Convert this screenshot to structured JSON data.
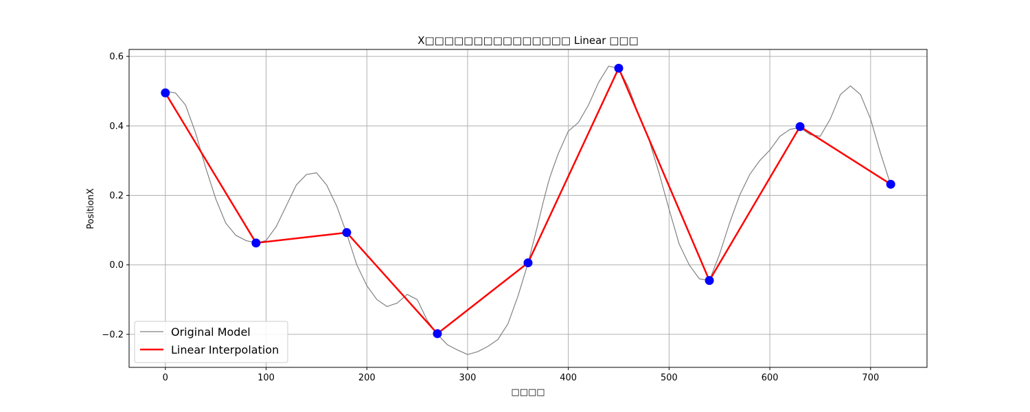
{
  "chart_data": {
    "type": "line",
    "title": "X□□□□□□□□□□□□□□□ Linear □□□",
    "xlabel": "□□□□",
    "ylabel": "PositionX",
    "xlim": [
      -36,
      756
    ],
    "ylim": [
      -0.295,
      0.62
    ],
    "xticks": [
      0,
      100,
      200,
      300,
      400,
      500,
      600,
      700
    ],
    "xtick_labels": [
      "0",
      "100",
      "200",
      "300",
      "400",
      "500",
      "600",
      "700"
    ],
    "yticks": [
      -0.2,
      0.0,
      0.2,
      0.4,
      0.6
    ],
    "ytick_labels": [
      "−0.2",
      "0.0",
      "0.2",
      "0.4",
      "0.6"
    ],
    "grid": true,
    "legend_position": "lower-left",
    "colors": {
      "original": "#808080",
      "interp": "#ff0000",
      "markers": "#0000ff",
      "grid": "#b0b0b0"
    },
    "series": [
      {
        "name": "Original Model",
        "x": [
          0,
          10,
          20,
          30,
          40,
          50,
          60,
          70,
          80,
          90,
          100,
          110,
          120,
          130,
          140,
          150,
          160,
          170,
          180,
          190,
          200,
          210,
          220,
          230,
          240,
          250,
          260,
          270,
          280,
          290,
          300,
          310,
          320,
          330,
          340,
          350,
          360,
          370,
          375,
          380,
          382,
          385,
          390,
          400,
          410,
          420,
          430,
          440,
          450,
          460,
          470,
          480,
          490,
          500,
          510,
          520,
          530,
          540,
          550,
          560,
          570,
          580,
          590,
          600,
          610,
          620,
          630,
          640,
          650,
          660,
          670,
          680,
          690,
          700,
          710,
          720
        ],
        "y": [
          0.5,
          0.495,
          0.46,
          0.38,
          0.28,
          0.19,
          0.12,
          0.085,
          0.07,
          0.063,
          0.07,
          0.11,
          0.17,
          0.23,
          0.26,
          0.265,
          0.23,
          0.17,
          0.09,
          0.0,
          -0.06,
          -0.1,
          -0.12,
          -0.11,
          -0.085,
          -0.1,
          -0.16,
          -0.2,
          -0.23,
          -0.245,
          -0.258,
          -0.25,
          -0.235,
          -0.215,
          -0.17,
          -0.09,
          0.005,
          0.12,
          0.18,
          0.235,
          0.255,
          0.28,
          0.32,
          0.385,
          0.41,
          0.46,
          0.525,
          0.572,
          0.565,
          0.51,
          0.43,
          0.36,
          0.265,
          0.16,
          0.06,
          0.0,
          -0.04,
          -0.045,
          0.03,
          0.12,
          0.2,
          0.26,
          0.3,
          0.33,
          0.37,
          0.39,
          0.395,
          0.375,
          0.37,
          0.42,
          0.49,
          0.515,
          0.49,
          0.42,
          0.32,
          0.23
        ]
      },
      {
        "name": "Linear Interpolation",
        "x": [
          0,
          90,
          180,
          270,
          360,
          450,
          540,
          630,
          720
        ],
        "y": [
          0.495,
          0.063,
          0.093,
          -0.198,
          0.006,
          0.566,
          -0.045,
          0.398,
          0.232
        ]
      }
    ],
    "keyframes": {
      "x": [
        0,
        90,
        180,
        270,
        360,
        450,
        540,
        630,
        720
      ],
      "y": [
        0.495,
        0.063,
        0.093,
        -0.198,
        0.006,
        0.566,
        -0.045,
        0.398,
        0.232
      ]
    }
  }
}
